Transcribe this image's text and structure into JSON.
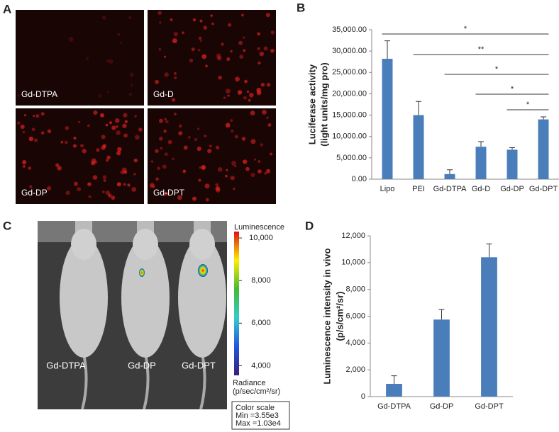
{
  "panel_labels": [
    "A",
    "B",
    "C",
    "D"
  ],
  "microscopy": {
    "labels": [
      "Gd-DTPA",
      "Gd-D",
      "Gd-DP",
      "Gd-DPT"
    ]
  },
  "imaging": {
    "labels": [
      "Gd-DTPA",
      "Gd-DP",
      "Gd-DPT"
    ],
    "colorbar": {
      "title": "Luminescence",
      "ticks": [
        {
          "value": 4000,
          "label": "4,000"
        },
        {
          "value": 6000,
          "label": "6,000"
        },
        {
          "value": 8000,
          "label": "8,000"
        },
        {
          "value": 10000,
          "label": "10,000"
        }
      ],
      "unit_title": "Radiance",
      "unit": "(p/sec/cm²/sr)"
    },
    "color_scale": {
      "title": "Color scale",
      "min": {
        "value": 3550,
        "label": "Min =3.55e3"
      },
      "max": {
        "value": 10300,
        "label": "Max =1.03e4"
      }
    }
  },
  "chart_data": [
    {
      "type": "bar",
      "categories": [
        "Lipo",
        "PEI",
        "Gd-DTPA",
        "Gd-D",
        "Gd-DP",
        "Gd-DPT"
      ],
      "values": [
        28200,
        15000,
        1200,
        7600,
        6900,
        14000
      ],
      "errors": [
        4200,
        3200,
        1000,
        1200,
        500,
        600
      ],
      "color": "#4a7ebb",
      "ylabel": [
        "Luciferase activity",
        "(light units/mg pro)"
      ],
      "ylim": [
        0,
        35000
      ],
      "yticks": [
        {
          "value": 0,
          "label": "0.00"
        },
        {
          "value": 5000,
          "label": "5,000.00"
        },
        {
          "value": 10000,
          "label": "10,000.00"
        },
        {
          "value": 15000,
          "label": "15,000.00"
        },
        {
          "value": 20000,
          "label": "20,000.00"
        },
        {
          "value": 25000,
          "label": "25,000.00"
        },
        {
          "value": 30000,
          "label": "30,000.00"
        },
        {
          "value": 35000,
          "label": "35,000.00"
        }
      ],
      "significance": [
        {
          "from": "Lipo",
          "to": "Gd-DPT",
          "label": "*"
        },
        {
          "from": "PEI",
          "to": "Gd-DPT",
          "label": "**"
        },
        {
          "from": "Gd-DTPA",
          "to": "Gd-DPT",
          "label": "*"
        },
        {
          "from": "Gd-D",
          "to": "Gd-DPT",
          "label": "*"
        },
        {
          "from": "Gd-DP",
          "to": "Gd-DPT",
          "label": "*"
        }
      ]
    },
    {
      "type": "bar",
      "categories": [
        "Gd-DTPA",
        "Gd-DP",
        "Gd-DPT"
      ],
      "values": [
        950,
        5750,
        10400
      ],
      "errors": [
        600,
        750,
        1000
      ],
      "color": "#4a7ebb",
      "ylabel": [
        "Luminescence intensity in vivo",
        "(p/s/cm²/sr)"
      ],
      "ylim": [
        0,
        12000
      ],
      "yticks": [
        0,
        {
          "value": 2000,
          "label": "2,000"
        },
        {
          "value": 4000,
          "label": "4,000"
        },
        {
          "value": 6000,
          "label": "6,000"
        },
        {
          "value": 8000,
          "label": "8,000"
        },
        {
          "value": 10000,
          "label": "10,000"
        },
        {
          "value": 12000,
          "label": "12,000"
        }
      ]
    }
  ]
}
